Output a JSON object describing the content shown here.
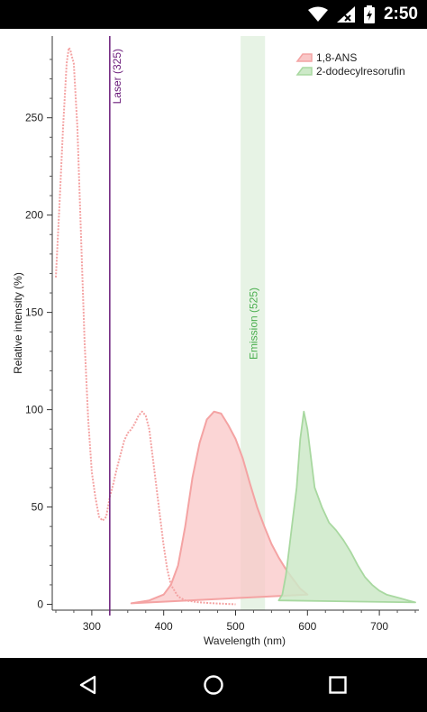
{
  "status_bar": {
    "time": "2:50",
    "icons": [
      "wifi-icon",
      "signal-icon",
      "battery-charging-icon"
    ]
  },
  "nav_bar": {
    "buttons": [
      "back-icon",
      "home-icon",
      "recents-icon"
    ]
  },
  "chart_data": {
    "type": "area",
    "title": "",
    "xlabel": "Wavelength (nm)",
    "ylabel": "Relative intensity (%)",
    "xlim": [
      245,
      755
    ],
    "ylim": [
      -3,
      292
    ],
    "x_ticks": [
      300,
      400,
      500,
      600,
      700
    ],
    "y_ticks": [
      0,
      50,
      100,
      150,
      200,
      250
    ],
    "x_tick_labels": [
      "300",
      "400",
      "500",
      "600",
      "700"
    ],
    "y_tick_labels": [
      "0",
      "50",
      "100",
      "150",
      "200",
      "250"
    ],
    "legend_position": "top-right",
    "series": [
      {
        "name": "1,8-ANS",
        "color": "#f4a3a3",
        "excitation": {
          "x": [
            250,
            255,
            260,
            265,
            268,
            270,
            272,
            275,
            280,
            285,
            290,
            295,
            300,
            305,
            310,
            315,
            320,
            325,
            330,
            335,
            340,
            345,
            350,
            355,
            360,
            365,
            370,
            375,
            380,
            385,
            390,
            395,
            400,
            405,
            410,
            420,
            430,
            450,
            470,
            500
          ],
          "y": [
            168,
            205,
            245,
            278,
            286,
            285,
            282,
            278,
            245,
            190,
            135,
            95,
            68,
            55,
            45,
            43,
            45,
            55,
            62,
            70,
            77,
            84,
            88,
            90,
            93,
            97,
            99,
            97,
            90,
            75,
            60,
            45,
            30,
            18,
            10,
            4,
            2,
            1,
            0.5,
            0
          ]
        },
        "emission": {
          "x": [
            355,
            380,
            400,
            410,
            420,
            430,
            440,
            450,
            460,
            470,
            480,
            490,
            500,
            510,
            520,
            530,
            540,
            550,
            560,
            570,
            580,
            590,
            600
          ],
          "y": [
            0.5,
            2,
            5,
            10,
            20,
            40,
            65,
            83,
            95,
            99,
            98,
            92,
            85,
            75,
            62,
            50,
            40,
            31,
            24,
            18,
            13,
            8,
            5
          ]
        }
      },
      {
        "name": "2-dodecylresorufin",
        "color": "#a8d8a0",
        "emission": {
          "x": [
            560,
            565,
            570,
            575,
            580,
            585,
            590,
            595,
            600,
            605,
            610,
            620,
            630,
            640,
            650,
            660,
            670,
            680,
            690,
            700,
            710,
            720,
            730,
            740,
            750
          ],
          "y": [
            2,
            5,
            15,
            30,
            45,
            60,
            85,
            99,
            90,
            75,
            60,
            50,
            42,
            38,
            33,
            27,
            20,
            14,
            10,
            7,
            5,
            4,
            3,
            2,
            1
          ]
        }
      }
    ],
    "annotations": [
      {
        "label": "Laser (325)",
        "x": 325,
        "color": "#6a1b7a",
        "type": "line"
      },
      {
        "label": "Emission (525)",
        "x": 525,
        "band": [
          507,
          541
        ],
        "color": "#4caf50",
        "type": "band"
      }
    ]
  }
}
